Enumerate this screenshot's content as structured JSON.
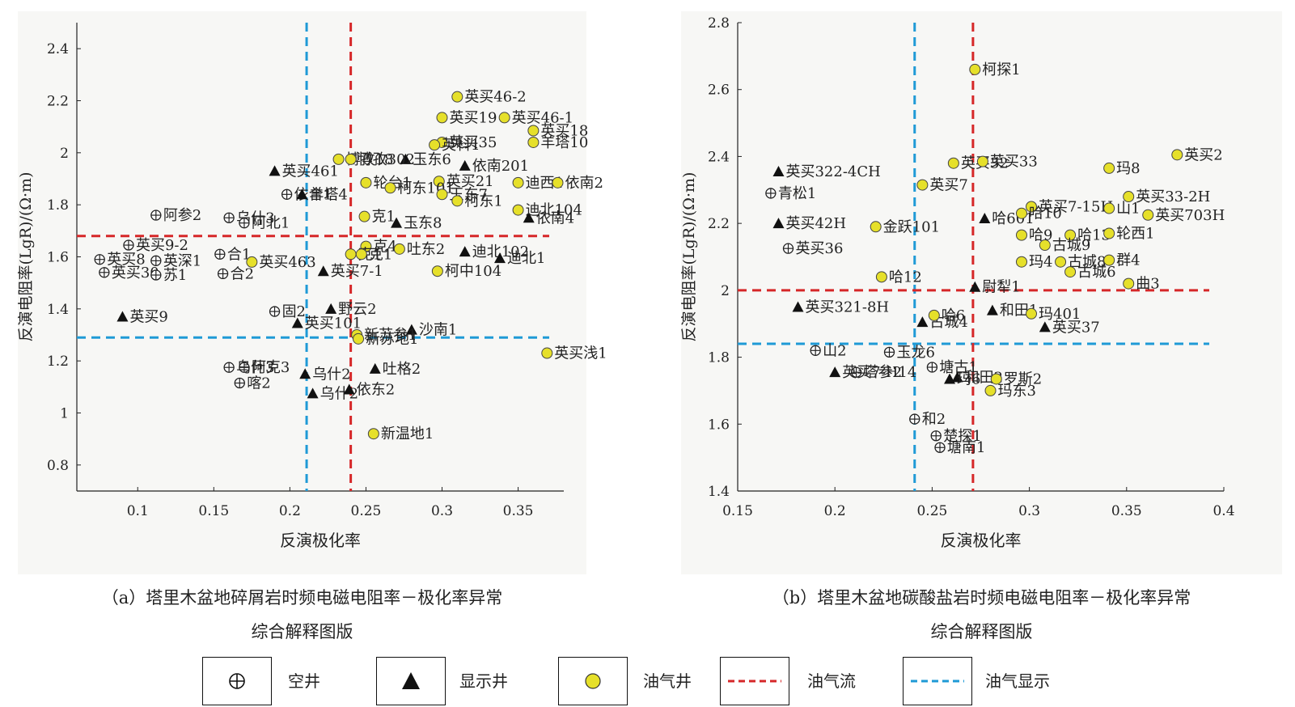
{
  "colors": {
    "oil_gas_well": "#e6e02a",
    "oil_gas_flow_line": "#d62728",
    "oil_gas_show_line": "#1f9ad6",
    "marker_black": "#111111"
  },
  "captions": {
    "a_line1": "（a）塔里木盆地碎屑岩时频电磁电阻率－极化率异常",
    "a_line2": "综合解释图版",
    "b_line1": "（b）塔里木盆地碳酸盐岩时频电磁电阻率－极化率异常",
    "b_line2": "综合解释图版"
  },
  "legend": {
    "items": [
      {
        "marker": "empty-well",
        "label": "空井"
      },
      {
        "marker": "show-well",
        "label": "显示井"
      },
      {
        "marker": "oil-gas-well",
        "label": "油气井"
      },
      {
        "marker": "red-dash",
        "label": "油气流"
      },
      {
        "marker": "blue-dash",
        "label": "油气显示"
      }
    ]
  },
  "chart_data": [
    {
      "type": "scatter",
      "title": "",
      "xlabel": "反演极化率",
      "ylabel": "反演电阻率(LgR)/(Ω·m)",
      "xlim": [
        0.06,
        0.38
      ],
      "ylim": [
        0.7,
        2.5
      ],
      "xticks": [
        0.1,
        0.15,
        0.2,
        0.25,
        0.3,
        0.35
      ],
      "xtick_labels": [
        "0.1",
        "0.15",
        "0.2",
        "0.25",
        "0.3",
        "0.35"
      ],
      "yticks": [
        0.8,
        1.0,
        1.2,
        1.4,
        1.6,
        1.8,
        2.0,
        2.2,
        2.4
      ],
      "ytick_labels": [
        "0.8",
        "1",
        "1.2",
        "1.4",
        "1.6",
        "1.8",
        "2",
        "2.2",
        "2.4"
      ],
      "thresholds": {
        "oil_gas_flow": {
          "x": 0.24,
          "y": 1.68
        },
        "oil_gas_show": {
          "x": 0.211,
          "y": 1.29
        }
      },
      "series": [
        {
          "name": "空井",
          "marker": "empty-well",
          "points": [
            {
              "label": "英买9-2",
              "x": 0.094,
              "y": 1.645
            },
            {
              "label": "英买8",
              "x": 0.075,
              "y": 1.59
            },
            {
              "label": "英买30",
              "x": 0.078,
              "y": 1.54
            },
            {
              "label": "英深1",
              "x": 0.112,
              "y": 1.585
            },
            {
              "label": "苏1",
              "x": 0.112,
              "y": 1.53
            },
            {
              "label": "阿参2",
              "x": 0.112,
              "y": 1.76
            },
            {
              "label": "合1",
              "x": 0.154,
              "y": 1.61
            },
            {
              "label": "合2",
              "x": 0.156,
              "y": 1.535
            },
            {
              "label": "乌什3",
              "x": 0.16,
              "y": 1.75
            },
            {
              "label": "阿北1",
              "x": 0.17,
              "y": 1.73
            },
            {
              "label": "固2",
              "x": 0.19,
              "y": 1.39
            },
            {
              "label": "阿克3",
              "x": 0.17,
              "y": 1.175
            },
            {
              "label": "乌什3",
              "x": 0.16,
              "y": 1.175
            },
            {
              "label": "喀2",
              "x": 0.167,
              "y": 1.115
            },
            {
              "label": "依合1",
              "x": 0.198,
              "y": 1.84
            }
          ]
        },
        {
          "name": "显示井",
          "marker": "show-well",
          "points": [
            {
              "label": "英买461",
              "x": 0.19,
              "y": 1.93
            },
            {
              "label": "羊塔4",
              "x": 0.208,
              "y": 1.84
            },
            {
              "label": "英买9",
              "x": 0.09,
              "y": 1.37
            },
            {
              "label": "英买7-1",
              "x": 0.222,
              "y": 1.545
            },
            {
              "label": "英买101",
              "x": 0.205,
              "y": 1.345
            },
            {
              "label": "野云2",
              "x": 0.227,
              "y": 1.4
            },
            {
              "label": "乌什2",
              "x": 0.21,
              "y": 1.15
            },
            {
              "label": "乌什2",
              "x": 0.215,
              "y": 1.075
            },
            {
              "label": "依东2",
              "x": 0.239,
              "y": 1.09
            },
            {
              "label": "吐格2",
              "x": 0.256,
              "y": 1.17
            },
            {
              "label": "沙南1",
              "x": 0.28,
              "y": 1.32
            },
            {
              "label": "玉东8",
              "x": 0.27,
              "y": 1.73
            },
            {
              "label": "玉东6",
              "x": 0.276,
              "y": 1.975
            },
            {
              "label": "依南201",
              "x": 0.315,
              "y": 1.95
            },
            {
              "label": "迪北102",
              "x": 0.315,
              "y": 1.62
            },
            {
              "label": "迪北1",
              "x": 0.338,
              "y": 1.595
            },
            {
              "label": "依南4",
              "x": 0.357,
              "y": 1.75
            }
          ]
        },
        {
          "name": "油气井",
          "marker": "oil-gas-well",
          "points": [
            {
              "label": "英买46-2",
              "x": 0.31,
              "y": 2.215
            },
            {
              "label": "英买19",
              "x": 0.3,
              "y": 2.135
            },
            {
              "label": "英买46-1",
              "x": 0.341,
              "y": 2.135
            },
            {
              "label": "英买18",
              "x": 0.36,
              "y": 2.085
            },
            {
              "label": "英买35",
              "x": 0.3,
              "y": 2.04
            },
            {
              "label": "羊塔10",
              "x": 0.36,
              "y": 2.04
            },
            {
              "label": "博孜18",
              "x": 0.232,
              "y": 1.975
            },
            {
              "label": "博孜302",
              "x": 0.24,
              "y": 1.975
            },
            {
              "label": "英科1",
              "x": 0.295,
              "y": 2.03
            },
            {
              "label": "英买21",
              "x": 0.298,
              "y": 1.89
            },
            {
              "label": "轮台1",
              "x": 0.25,
              "y": 1.885
            },
            {
              "label": "迪西1",
              "x": 0.35,
              "y": 1.885
            },
            {
              "label": "依南2",
              "x": 0.376,
              "y": 1.885
            },
            {
              "label": "柯东101",
              "x": 0.266,
              "y": 1.865
            },
            {
              "label": "玉东7",
              "x": 0.3,
              "y": 1.84
            },
            {
              "label": "柯东1",
              "x": 0.31,
              "y": 1.815
            },
            {
              "label": "迪北104",
              "x": 0.35,
              "y": 1.78
            },
            {
              "label": "克1",
              "x": 0.249,
              "y": 1.755
            },
            {
              "label": "克4",
              "x": 0.25,
              "y": 1.64
            },
            {
              "label": "吐东2",
              "x": 0.272,
              "y": 1.63
            },
            {
              "label": "克1",
              "x": 0.24,
              "y": 1.61
            },
            {
              "label": "克1",
              "x": 0.247,
              "y": 1.61
            },
            {
              "label": "英买463",
              "x": 0.175,
              "y": 1.58
            },
            {
              "label": "柯中104",
              "x": 0.297,
              "y": 1.545
            },
            {
              "label": "新苏参1",
              "x": 0.244,
              "y": 1.3
            },
            {
              "label": "新苏地1",
              "x": 0.245,
              "y": 1.285
            },
            {
              "label": "英买浅1",
              "x": 0.369,
              "y": 1.23
            },
            {
              "label": "新温地1",
              "x": 0.255,
              "y": 0.92
            }
          ]
        }
      ]
    },
    {
      "type": "scatter",
      "title": "",
      "xlabel": "反演极化率",
      "ylabel": "反演电阻率(LgR)/(Ω·m)",
      "xlim": [
        0.15,
        0.4
      ],
      "ylim": [
        1.4,
        2.8
      ],
      "xticks": [
        0.15,
        0.2,
        0.25,
        0.3,
        0.35,
        0.4
      ],
      "xtick_labels": [
        "0.15",
        "0.2",
        "0.25",
        "0.3",
        "0.35",
        "0.4"
      ],
      "yticks": [
        1.4,
        1.6,
        1.8,
        2.0,
        2.2,
        2.4,
        2.6,
        2.8
      ],
      "ytick_labels": [
        "1.4",
        "1.6",
        "1.8",
        "2",
        "2.2",
        "2.4",
        "2.6",
        "2.8"
      ],
      "thresholds": {
        "oil_gas_flow": {
          "x": 0.271,
          "y": 2.0
        },
        "oil_gas_show": {
          "x": 0.241,
          "y": 1.84
        }
      },
      "series": [
        {
          "name": "空井",
          "marker": "empty-well",
          "points": [
            {
              "label": "青松1",
              "x": 0.167,
              "y": 2.29
            },
            {
              "label": "英买36",
              "x": 0.176,
              "y": 2.125
            },
            {
              "label": "山2",
              "x": 0.19,
              "y": 1.82
            },
            {
              "label": "玉龙6",
              "x": 0.228,
              "y": 1.815
            },
            {
              "label": "塔参2",
              "x": 0.211,
              "y": 1.755
            },
            {
              "label": "塘古1",
              "x": 0.25,
              "y": 1.77
            },
            {
              "label": "和2",
              "x": 0.241,
              "y": 1.615
            },
            {
              "label": "楚探1",
              "x": 0.252,
              "y": 1.565
            },
            {
              "label": "塘南1",
              "x": 0.254,
              "y": 1.53
            }
          ]
        },
        {
          "name": "显示井",
          "marker": "show-well",
          "points": [
            {
              "label": "英买322-4CH",
              "x": 0.171,
              "y": 2.355
            },
            {
              "label": "英买42H",
              "x": 0.171,
              "y": 2.2
            },
            {
              "label": "英买321-8H",
              "x": 0.181,
              "y": 1.95
            },
            {
              "label": "英买7-H14",
              "x": 0.2,
              "y": 1.755
            },
            {
              "label": "哈601",
              "x": 0.277,
              "y": 2.215
            },
            {
              "label": "尉犁1",
              "x": 0.272,
              "y": 2.01
            },
            {
              "label": "和田1",
              "x": 0.281,
              "y": 1.94
            },
            {
              "label": "英买37",
              "x": 0.308,
              "y": 1.89
            },
            {
              "label": "古城4",
              "x": 0.245,
              "y": 1.905
            },
            {
              "label": "和田2",
              "x": 0.263,
              "y": 1.74
            },
            {
              "label": "玛6",
              "x": 0.259,
              "y": 1.735
            }
          ]
        },
        {
          "name": "油气井",
          "marker": "oil-gas-well",
          "points": [
            {
              "label": "柯探1",
              "x": 0.272,
              "y": 2.66
            },
            {
              "label": "英买32",
              "x": 0.261,
              "y": 2.38
            },
            {
              "label": "英买33",
              "x": 0.276,
              "y": 2.385
            },
            {
              "label": "英买7",
              "x": 0.245,
              "y": 2.315
            },
            {
              "label": "英买2",
              "x": 0.376,
              "y": 2.405
            },
            {
              "label": "玛8",
              "x": 0.341,
              "y": 2.365
            },
            {
              "label": "英买33-2H",
              "x": 0.351,
              "y": 2.28
            },
            {
              "label": "英买7-15H",
              "x": 0.301,
              "y": 2.25
            },
            {
              "label": "山1",
              "x": 0.341,
              "y": 2.245
            },
            {
              "label": "英买703H",
              "x": 0.361,
              "y": 2.225
            },
            {
              "label": "金跃101",
              "x": 0.221,
              "y": 2.19
            },
            {
              "label": "哈9",
              "x": 0.296,
              "y": 2.165
            },
            {
              "label": "哈13",
              "x": 0.321,
              "y": 2.165
            },
            {
              "label": "轮西1",
              "x": 0.341,
              "y": 2.17
            },
            {
              "label": "哈10",
              "x": 0.296,
              "y": 2.23
            },
            {
              "label": "古城9",
              "x": 0.308,
              "y": 2.135
            },
            {
              "label": "玛4",
              "x": 0.296,
              "y": 2.085
            },
            {
              "label": "古城8",
              "x": 0.316,
              "y": 2.085
            },
            {
              "label": "群4",
              "x": 0.341,
              "y": 2.09
            },
            {
              "label": "古城6",
              "x": 0.321,
              "y": 2.055
            },
            {
              "label": "曲3",
              "x": 0.351,
              "y": 2.02
            },
            {
              "label": "哈12",
              "x": 0.224,
              "y": 2.04
            },
            {
              "label": "哈6",
              "x": 0.251,
              "y": 1.925
            },
            {
              "label": "玛401",
              "x": 0.301,
              "y": 1.93
            },
            {
              "label": "罗斯2",
              "x": 0.283,
              "y": 1.735
            },
            {
              "label": "玛东3",
              "x": 0.28,
              "y": 1.7
            }
          ]
        }
      ]
    }
  ]
}
